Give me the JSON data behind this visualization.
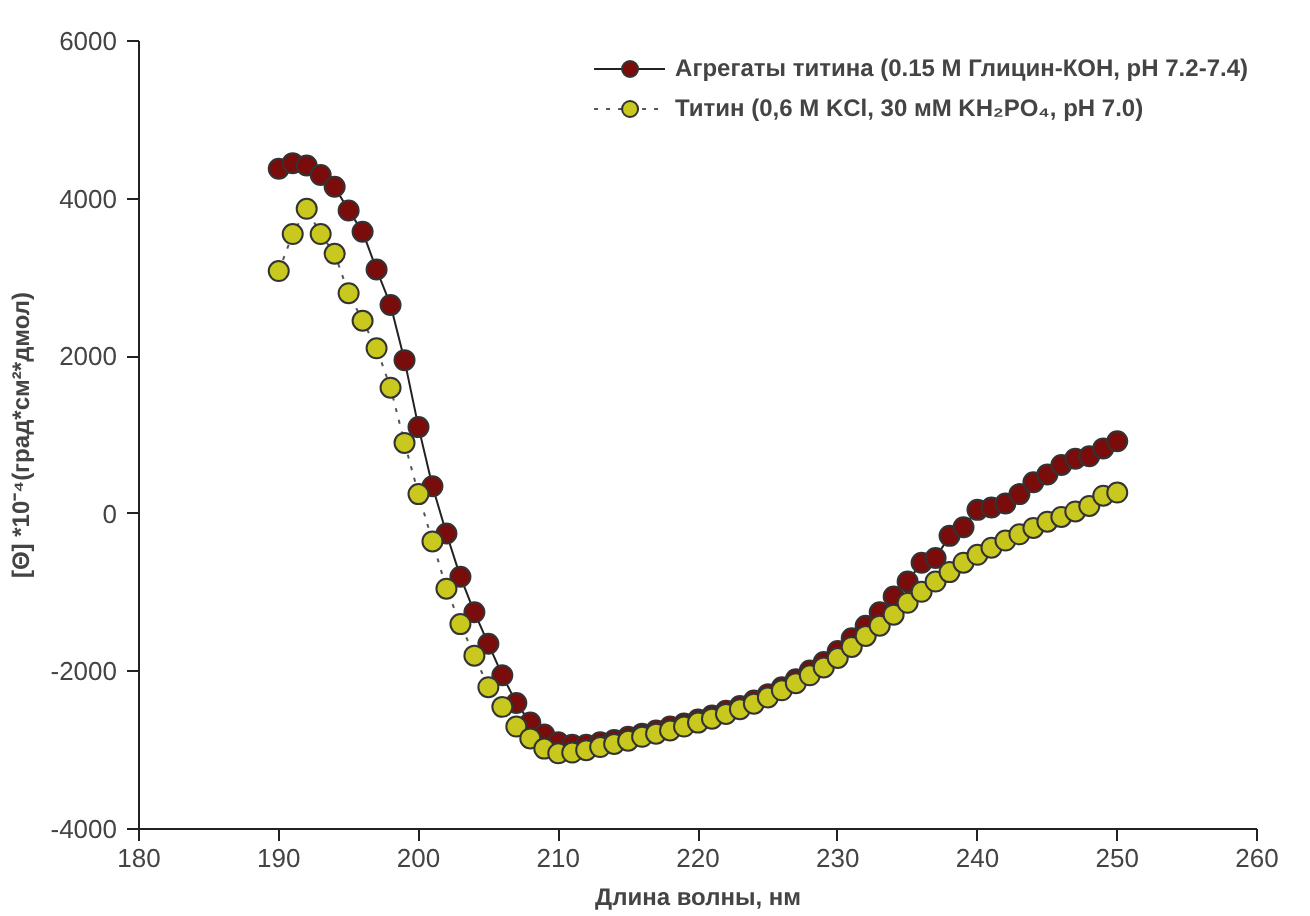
{
  "chart_data": {
    "type": "line",
    "xlabel": "Длина волны, нм",
    "ylabel": "[Θ] *10⁻⁴(град*см²*дмол)",
    "x": [
      190,
      191,
      192,
      193,
      194,
      195,
      196,
      197,
      198,
      199,
      200,
      201,
      202,
      203,
      204,
      205,
      206,
      207,
      208,
      209,
      210,
      211,
      212,
      213,
      214,
      215,
      216,
      217,
      218,
      219,
      220,
      221,
      222,
      223,
      224,
      225,
      226,
      227,
      228,
      229,
      230,
      231,
      232,
      233,
      234,
      235,
      236,
      237,
      238,
      239,
      240,
      241,
      242,
      243,
      244,
      245,
      246,
      247,
      248,
      249,
      250
    ],
    "series": [
      {
        "name": "Агрегаты титина (0.15 М Глицин-КОН, pH 7.2-7.4)",
        "color": "#7b0c0c",
        "line_style": "solid",
        "values": [
          4380,
          4450,
          4420,
          4300,
          4150,
          3850,
          3580,
          3100,
          2650,
          1950,
          1100,
          350,
          -250,
          -800,
          -1250,
          -1650,
          -2050,
          -2400,
          -2650,
          -2800,
          -2900,
          -2930,
          -2930,
          -2900,
          -2870,
          -2830,
          -2790,
          -2750,
          -2700,
          -2660,
          -2610,
          -2560,
          -2500,
          -2440,
          -2370,
          -2290,
          -2200,
          -2100,
          -1990,
          -1880,
          -1740,
          -1580,
          -1420,
          -1250,
          -1050,
          -860,
          -620,
          -560,
          -280,
          -170,
          50,
          80,
          130,
          250,
          400,
          500,
          620,
          700,
          730,
          830,
          920
        ]
      },
      {
        "name": "Титин (0,6 М KCl, 30 мМ KH₂PO₄, pH 7.0)",
        "color": "#c8c81e",
        "line_style": "dotted",
        "values": [
          3080,
          3550,
          3870,
          3550,
          3300,
          2800,
          2450,
          2100,
          1600,
          900,
          250,
          -350,
          -950,
          -1400,
          -1800,
          -2200,
          -2450,
          -2700,
          -2850,
          -2980,
          -3040,
          -3030,
          -3000,
          -2960,
          -2920,
          -2880,
          -2830,
          -2790,
          -2750,
          -2700,
          -2650,
          -2600,
          -2540,
          -2480,
          -2410,
          -2330,
          -2240,
          -2150,
          -2050,
          -1950,
          -1830,
          -1690,
          -1550,
          -1420,
          -1280,
          -1130,
          -990,
          -860,
          -740,
          -620,
          -520,
          -430,
          -340,
          -260,
          -180,
          -100,
          -40,
          30,
          100,
          230,
          270
        ]
      }
    ],
    "xlim": [
      180,
      260
    ],
    "xticks": [
      180,
      190,
      200,
      210,
      220,
      230,
      240,
      250,
      260
    ],
    "ylim": [
      -4000,
      6000
    ],
    "yticks": [
      -4000,
      -2000,
      0,
      2000,
      4000,
      6000
    ],
    "marker": "circle",
    "grid": false,
    "legend": "top right"
  }
}
